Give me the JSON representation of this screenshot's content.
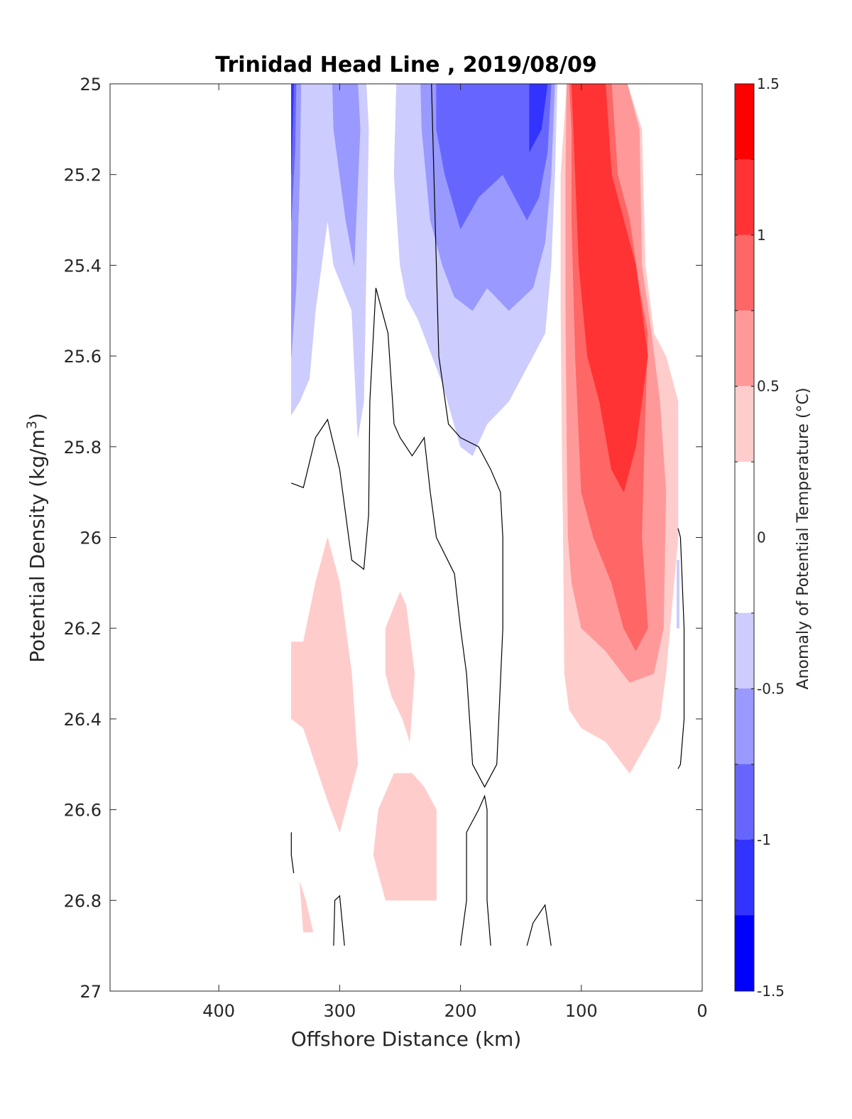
{
  "chart_data": {
    "type": "contour",
    "title": "Trinidad Head Line , 2019/08/09",
    "xlabel": "Offshore Distance (km)",
    "ylabel": "Potential Density (kg/m³)",
    "xlim": [
      490,
      0
    ],
    "ylim": [
      25,
      27
    ],
    "x_reversed": true,
    "y_reversed": true,
    "x_ticks": [
      {
        "value": 400,
        "label": "400"
      },
      {
        "value": 300,
        "label": "300"
      },
      {
        "value": 200,
        "label": "200"
      },
      {
        "value": 100,
        "label": "100"
      },
      {
        "value": 0,
        "label": "0"
      }
    ],
    "y_ticks": [
      {
        "value": 25,
        "label": "25"
      },
      {
        "value": 25.2,
        "label": "25.2"
      },
      {
        "value": 25.4,
        "label": "25.4"
      },
      {
        "value": 25.6,
        "label": "25.6"
      },
      {
        "value": 25.8,
        "label": "25.8"
      },
      {
        "value": 26,
        "label": "26"
      },
      {
        "value": 26.2,
        "label": "26.2"
      },
      {
        "value": 26.4,
        "label": "26.4"
      },
      {
        "value": 26.6,
        "label": "26.6"
      },
      {
        "value": 26.8,
        "label": "26.8"
      },
      {
        "value": 27,
        "label": "27"
      }
    ],
    "colorbar": {
      "label": "Anomaly of Potential Temperature (°C)",
      "range": [
        -1.5,
        1.5
      ],
      "tick_labels": [
        {
          "value": 1.5,
          "label": "1.5"
        },
        {
          "value": 1,
          "label": "1"
        },
        {
          "value": 0.5,
          "label": "0.5"
        },
        {
          "value": 0,
          "label": "0"
        },
        {
          "value": -0.5,
          "label": "-0.5"
        },
        {
          "value": -1,
          "label": "-1"
        },
        {
          "value": -1.5,
          "label": "-1.5"
        }
      ],
      "levels": [
        {
          "from": 1.25,
          "to": 1.5,
          "color": "#ff0000"
        },
        {
          "from": 1.0,
          "to": 1.25,
          "color": "#ff3333"
        },
        {
          "from": 0.75,
          "to": 1.0,
          "color": "#ff6666"
        },
        {
          "from": 0.5,
          "to": 0.75,
          "color": "#ff9999"
        },
        {
          "from": 0.25,
          "to": 0.5,
          "color": "#ffcccc"
        },
        {
          "from": -0.25,
          "to": 0.25,
          "color": "#ffffff"
        },
        {
          "from": -0.5,
          "to": -0.25,
          "color": "#ccccff"
        },
        {
          "from": -0.75,
          "to": -0.5,
          "color": "#9999ff"
        },
        {
          "from": -1.0,
          "to": -0.75,
          "color": "#6666ff"
        },
        {
          "from": -1.25,
          "to": -1.0,
          "color": "#3333ff"
        },
        {
          "from": -1.5,
          "to": -1.25,
          "color": "#0000ff"
        }
      ]
    },
    "regions": [
      {
        "color": "#ccccff",
        "points": [
          [
            340,
            25
          ],
          [
            278,
            25
          ],
          [
            276,
            25.1
          ],
          [
            280,
            25.7
          ],
          [
            285,
            25.78
          ],
          [
            290,
            25.5
          ],
          [
            305,
            25.4
          ],
          [
            310,
            25.3
          ],
          [
            320,
            25.5
          ],
          [
            325,
            25.65
          ],
          [
            333,
            25.7
          ],
          [
            340,
            25.73
          ]
        ]
      },
      {
        "color": "#9999ff",
        "points": [
          [
            340,
            25
          ],
          [
            332,
            25
          ],
          [
            333,
            25.2
          ],
          [
            336,
            25.45
          ],
          [
            340,
            25.6
          ]
        ]
      },
      {
        "color": "#9999ff",
        "points": [
          [
            306,
            25
          ],
          [
            285,
            25
          ],
          [
            283,
            25.1
          ],
          [
            288,
            25.4
          ],
          [
            295,
            25.3
          ],
          [
            305,
            25.1
          ]
        ]
      },
      {
        "color": "#6666ff",
        "points": [
          [
            340,
            25
          ],
          [
            336,
            25
          ],
          [
            337,
            25.15
          ],
          [
            340,
            25.3
          ]
        ]
      },
      {
        "color": "#3333ff",
        "points": [
          [
            340,
            25
          ],
          [
            338,
            25
          ],
          [
            339,
            25.1
          ],
          [
            340,
            25.2
          ]
        ]
      },
      {
        "color": "#ccccff",
        "points": [
          [
            253,
            25
          ],
          [
            120,
            25
          ],
          [
            122,
            25.2
          ],
          [
            125,
            25.4
          ],
          [
            130,
            25.55
          ],
          [
            140,
            25.6
          ],
          [
            150,
            25.65
          ],
          [
            160,
            25.7
          ],
          [
            178,
            25.75
          ],
          [
            190,
            25.82
          ],
          [
            200,
            25.8
          ],
          [
            215,
            25.66
          ],
          [
            235,
            25.52
          ],
          [
            245,
            25.47
          ],
          [
            250,
            25.4
          ],
          [
            255,
            25.2
          ]
        ]
      },
      {
        "color": "#9999ff",
        "points": [
          [
            233,
            25
          ],
          [
            122,
            25
          ],
          [
            125,
            25.2
          ],
          [
            130,
            25.35
          ],
          [
            140,
            25.45
          ],
          [
            160,
            25.5
          ],
          [
            178,
            25.45
          ],
          [
            190,
            25.5
          ],
          [
            205,
            25.47
          ],
          [
            215,
            25.4
          ],
          [
            225,
            25.3
          ],
          [
            232,
            25.1
          ]
        ]
      },
      {
        "color": "#6666ff",
        "points": [
          [
            220,
            25
          ],
          [
            125,
            25
          ],
          [
            128,
            25.15
          ],
          [
            135,
            25.25
          ],
          [
            145,
            25.3
          ],
          [
            165,
            25.2
          ],
          [
            185,
            25.25
          ],
          [
            200,
            25.32
          ],
          [
            213,
            25.2
          ],
          [
            220,
            25.1
          ]
        ]
      },
      {
        "color": "#3333ff",
        "points": [
          [
            143,
            25
          ],
          [
            128,
            25
          ],
          [
            133,
            25.1
          ],
          [
            143,
            25.15
          ]
        ]
      },
      {
        "color": "#ffcccc",
        "points": [
          [
            112,
            25
          ],
          [
            62,
            25
          ],
          [
            50,
            25.1
          ],
          [
            47,
            25.4
          ],
          [
            40,
            25.55
          ],
          [
            30,
            25.6
          ],
          [
            20,
            25.7
          ],
          [
            20,
            26.0
          ],
          [
            30,
            26.3
          ],
          [
            35,
            26.4
          ],
          [
            45,
            26.45
          ],
          [
            60,
            26.52
          ],
          [
            80,
            26.45
          ],
          [
            100,
            26.42
          ],
          [
            110,
            26.38
          ],
          [
            114,
            26.3
          ],
          [
            115,
            26.0
          ],
          [
            116,
            25.8
          ],
          [
            117,
            25.5
          ],
          [
            117,
            25.2
          ]
        ]
      },
      {
        "color": "#ff9999",
        "points": [
          [
            112,
            25
          ],
          [
            62,
            25
          ],
          [
            52,
            25.1
          ],
          [
            50,
            25.4
          ],
          [
            42,
            25.55
          ],
          [
            35,
            25.7
          ],
          [
            30,
            25.9
          ],
          [
            32,
            26.2
          ],
          [
            40,
            26.3
          ],
          [
            60,
            26.32
          ],
          [
            80,
            26.25
          ],
          [
            100,
            26.2
          ],
          [
            108,
            26.1
          ],
          [
            111,
            26.0
          ],
          [
            112,
            25.8
          ],
          [
            113,
            25.5
          ],
          [
            113,
            25.2
          ]
        ]
      },
      {
        "color": "#ff6666",
        "points": [
          [
            110,
            25
          ],
          [
            75,
            25
          ],
          [
            70,
            25.2
          ],
          [
            60,
            25.3
          ],
          [
            52,
            25.45
          ],
          [
            45,
            25.55
          ],
          [
            48,
            25.8
          ],
          [
            50,
            26.0
          ],
          [
            45,
            26.2
          ],
          [
            55,
            26.25
          ],
          [
            65,
            26.2
          ],
          [
            75,
            26.1
          ],
          [
            90,
            26.0
          ],
          [
            100,
            25.9
          ],
          [
            105,
            25.6
          ],
          [
            108,
            25.3
          ],
          [
            108,
            25.1
          ]
        ]
      },
      {
        "color": "#ff3333",
        "points": [
          [
            108,
            25
          ],
          [
            80,
            25
          ],
          [
            75,
            25.2
          ],
          [
            70,
            25.25
          ],
          [
            55,
            25.4
          ],
          [
            45,
            25.6
          ],
          [
            55,
            25.8
          ],
          [
            65,
            25.9
          ],
          [
            75,
            25.85
          ],
          [
            85,
            25.7
          ],
          [
            95,
            25.6
          ],
          [
            102,
            25.4
          ],
          [
            105,
            25.2
          ]
        ]
      },
      {
        "color": "#ffcccc",
        "points": [
          [
            340,
            26.23
          ],
          [
            330,
            26.23
          ],
          [
            320,
            26.1
          ],
          [
            310,
            26.0
          ],
          [
            300,
            26.1
          ],
          [
            290,
            26.3
          ],
          [
            285,
            26.5
          ],
          [
            295,
            26.6
          ],
          [
            300,
            26.65
          ],
          [
            310,
            26.58
          ],
          [
            320,
            26.5
          ],
          [
            330,
            26.42
          ],
          [
            340,
            26.4
          ]
        ]
      },
      {
        "color": "#ffcccc",
        "points": [
          [
            262,
            26.2
          ],
          [
            250,
            26.12
          ],
          [
            245,
            26.15
          ],
          [
            238,
            26.3
          ],
          [
            242,
            26.45
          ],
          [
            248,
            26.4
          ],
          [
            257,
            26.35
          ],
          [
            262,
            26.3
          ]
        ]
      },
      {
        "color": "#ffcccc",
        "points": [
          [
            255,
            26.52
          ],
          [
            240,
            26.52
          ],
          [
            230,
            26.55
          ],
          [
            220,
            26.6
          ],
          [
            220,
            26.8
          ],
          [
            250,
            26.8
          ],
          [
            262,
            26.8
          ],
          [
            272,
            26.7
          ],
          [
            268,
            26.6
          ]
        ]
      },
      {
        "color": "#ffcccc",
        "points": [
          [
            333,
            26.76
          ],
          [
            328,
            26.8
          ],
          [
            322,
            26.87
          ],
          [
            330,
            26.87
          ]
        ]
      },
      {
        "color": "#ccccff",
        "points": [
          [
            21,
            26.05
          ],
          [
            19,
            26.05
          ],
          [
            19,
            26.2
          ],
          [
            21,
            26.2
          ]
        ]
      }
    ],
    "contour_lines": [
      {
        "points": [
          [
            340,
            25.88
          ],
          [
            330,
            25.89
          ],
          [
            320,
            25.78
          ],
          [
            310,
            25.74
          ],
          [
            300,
            25.85
          ],
          [
            290,
            26.05
          ],
          [
            280,
            26.07
          ],
          [
            276,
            25.95
          ],
          [
            275,
            25.7
          ],
          [
            270,
            25.45
          ],
          [
            265,
            25.5
          ],
          [
            260,
            25.55
          ],
          [
            255,
            25.75
          ],
          [
            250,
            25.78
          ],
          [
            240,
            25.82
          ],
          [
            230,
            25.78
          ],
          [
            225,
            25.9
          ],
          [
            220,
            26.0
          ],
          [
            205,
            26.08
          ],
          [
            200,
            26.2
          ],
          [
            195,
            26.3
          ],
          [
            190,
            26.5
          ],
          [
            180,
            26.55
          ],
          [
            170,
            26.5
          ],
          [
            165,
            26.2
          ],
          [
            165,
            26.0
          ],
          [
            167,
            25.9
          ],
          [
            175,
            25.85
          ],
          [
            185,
            25.8
          ],
          [
            200,
            25.78
          ],
          [
            210,
            25.75
          ],
          [
            218,
            25.6
          ],
          [
            220,
            25.4
          ],
          [
            222,
            25.2
          ],
          [
            224,
            25
          ]
        ]
      },
      {
        "points": [
          [
            340,
            26.65
          ],
          [
            340,
            26.7
          ],
          [
            338,
            26.74
          ]
        ]
      },
      {
        "points": [
          [
            305,
            26.9
          ],
          [
            304,
            26.8
          ],
          [
            300,
            26.79
          ],
          [
            296,
            26.9
          ]
        ]
      },
      {
        "points": [
          [
            200,
            26.9
          ],
          [
            195,
            26.8
          ],
          [
            195,
            26.65
          ],
          [
            185,
            26.6
          ],
          [
            180,
            26.57
          ],
          [
            178,
            26.6
          ],
          [
            178,
            26.8
          ],
          [
            175,
            26.9
          ]
        ]
      },
      {
        "points": [
          [
            145,
            26.9
          ],
          [
            140,
            26.85
          ],
          [
            130,
            26.81
          ],
          [
            125,
            26.9
          ]
        ]
      },
      {
        "points": [
          [
            20,
            25.98
          ],
          [
            18,
            26.0
          ],
          [
            15,
            26.2
          ],
          [
            15,
            26.4
          ],
          [
            18,
            26.5
          ],
          [
            20,
            26.51
          ]
        ]
      }
    ]
  }
}
